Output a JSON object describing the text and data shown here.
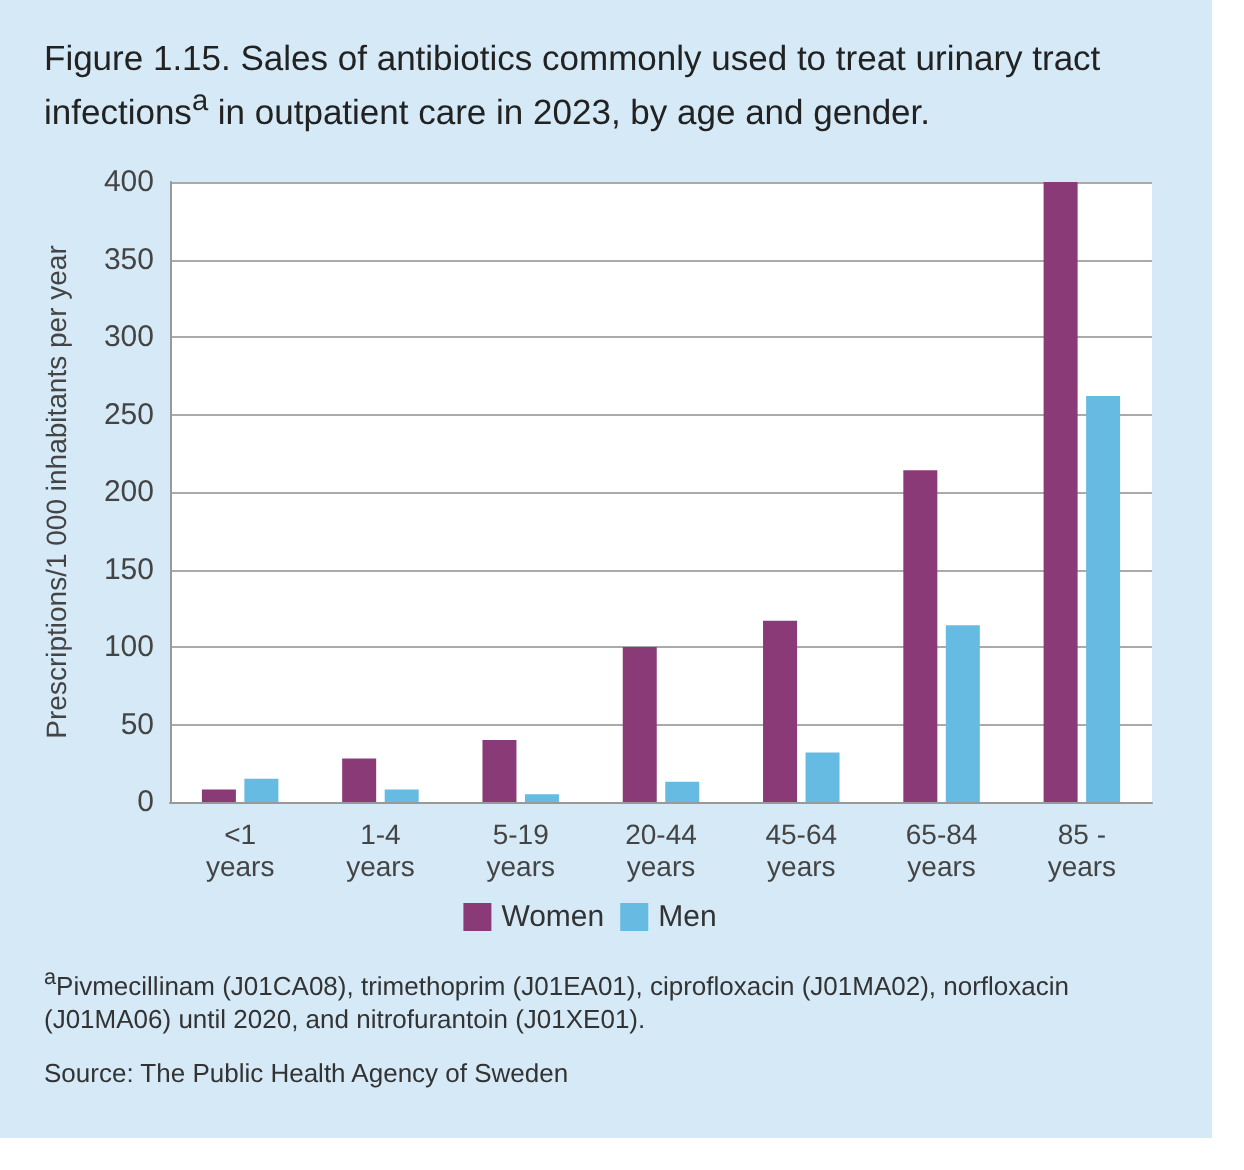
{
  "chart_data": {
    "type": "bar",
    "title": "Figure 1.15. Sales of antibiotics commonly used to treat urinary tract infections$^{a}$ in outpatient care in 2023, by age and gender.",
    "ylabel": "Prescriptions/1 000 inhabitants per year",
    "categories": [
      "<1 years",
      "1-4 years",
      "5-19 years",
      "20-44 years",
      "45-64 years",
      "65-84 years",
      "85 - years"
    ],
    "series": [
      {
        "name": "Women",
        "color": "#8b3a78",
        "values": [
          8,
          28,
          40,
          100,
          117,
          214,
          400
        ]
      },
      {
        "name": "Men",
        "color": "#66bbe2",
        "values": [
          15,
          8,
          5,
          13,
          32,
          114,
          262
        ]
      }
    ],
    "ylim": [
      0,
      400
    ],
    "yticks": [
      0,
      50,
      100,
      150,
      200,
      250,
      300,
      350,
      400
    ],
    "grid": "y",
    "legend": "bottom",
    "annotations": [
      "$^{a}$Pivmecillinam (J01CA08), trimethoprim (J01EA01), ciprofloxacin (J01MA02), norfloxacin (J01MA06) until 2020, and nitrofurantoin (J01XE01).",
      "Source: The Public Health Agency of Sweden"
    ]
  }
}
